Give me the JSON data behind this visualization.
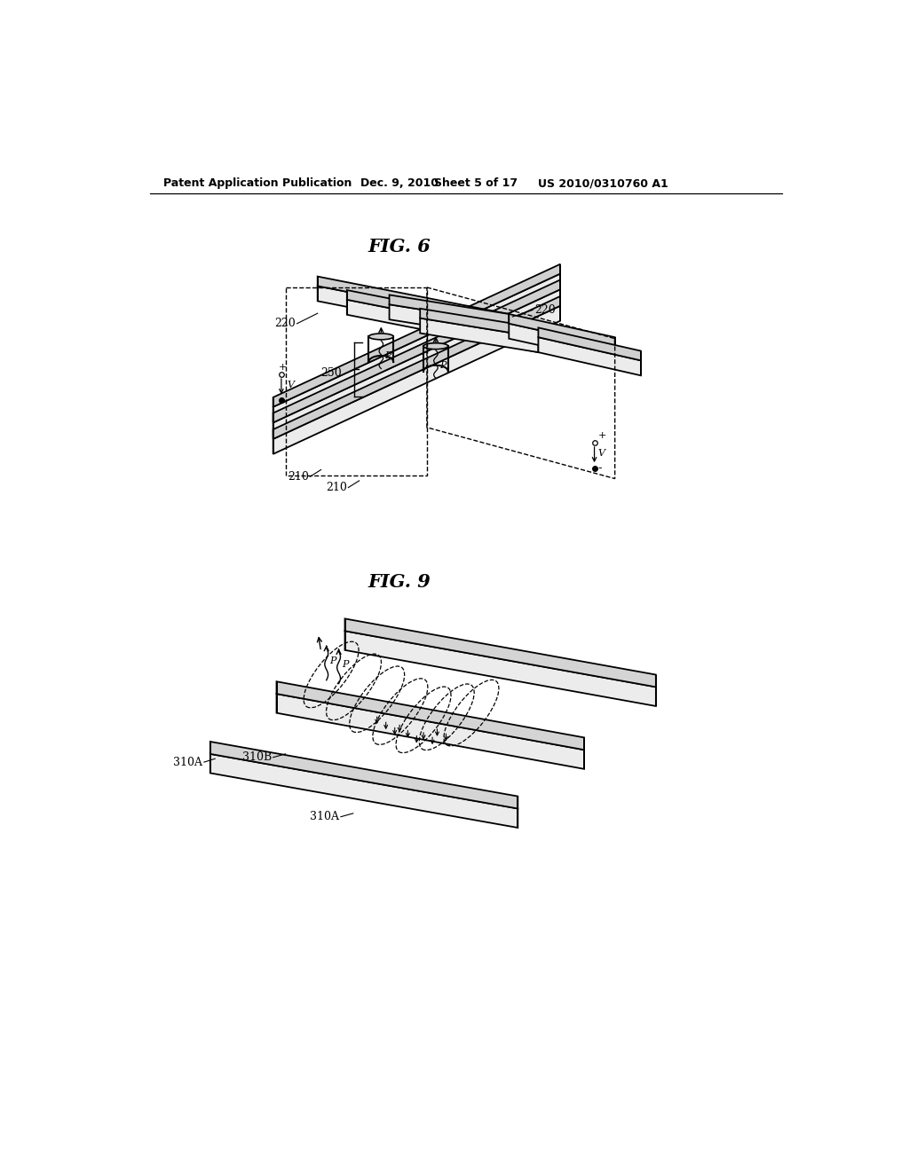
{
  "bg_color": "#ffffff",
  "edge_color": "#000000",
  "face_front": "#e8e8e8",
  "face_top": "#c8c8c8",
  "face_side": "#b0b0b0",
  "header_left": "Patent Application Publication",
  "header_mid1": "Dec. 9, 2010",
  "header_mid2": "Sheet 5 of 17",
  "header_right": "US 2010/0310760 A1",
  "fig6_title": "FIG. 6",
  "fig9_title": "FIG. 9",
  "lw": 1.3
}
